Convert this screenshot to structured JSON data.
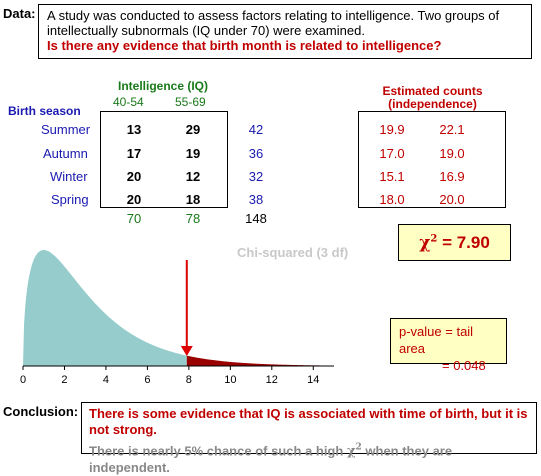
{
  "data_label": "Data:",
  "data_text": "A study was conducted to assess factors relating to intelligence. Two groups of intellectually subnormals (IQ under 70) were examined.",
  "question": "Is there any evidence that birth month is related to intelligence?",
  "iq_header": "Intelligence (IQ)",
  "iq_cols": [
    "40-54",
    "55-69"
  ],
  "birth_header": "Birth season",
  "seasons": [
    "Summer",
    "Autumn",
    "Winter",
    "Spring"
  ],
  "observed": [
    [
      13,
      29
    ],
    [
      17,
      19
    ],
    [
      20,
      12
    ],
    [
      20,
      18
    ]
  ],
  "row_totals": [
    42,
    36,
    32,
    38
  ],
  "col_totals": [
    70,
    78
  ],
  "grand_total": 148,
  "est_header_1": "Estimated counts",
  "est_header_2": "(independence)",
  "expected": [
    [
      "19.9",
      "22.1"
    ],
    [
      "17.0",
      "19.0"
    ],
    [
      "15.1",
      "16.9"
    ],
    [
      "18.0",
      "20.0"
    ]
  ],
  "chi_label": "Chi-squared (3 df)",
  "chi_value": "7.90",
  "p_line1": "p-value  =  tail area",
  "p_line2": "=  0.048",
  "conclusion_label": "Conclusion:",
  "conclusion_main": "There is some evidence that IQ is associated with time of birth, but it is not strong.",
  "conclusion_note_a": "There is nearly 5% chance of such a high",
  "conclusion_note_b": "when they are independent.",
  "colors": {
    "fill": "#96cccc",
    "tail": "#990000",
    "arrow": "#dd0000",
    "red": "#c00000"
  },
  "chart_data": {
    "type": "area",
    "df": 3,
    "statistic": 7.9,
    "tail_area": 0.048,
    "xlim": [
      0,
      15
    ],
    "xticks": [
      0,
      2,
      4,
      6,
      8,
      10,
      12,
      14
    ]
  }
}
